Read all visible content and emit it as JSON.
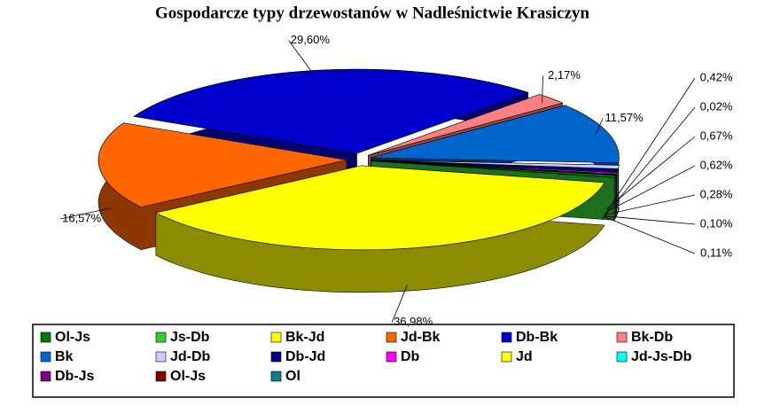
{
  "chart_data": {
    "type": "pie",
    "title": "Gospodarcze typy drzewostanów w Nadleśnictwie Krasiczyn",
    "categories": [
      "Ol-Js",
      "Js-Db",
      "Bk-Jd",
      "Jd-Bk",
      "Db-Bk",
      "Bk-Db",
      "Bk",
      "Jd-Db",
      "Db-Jd",
      "Db",
      "Jd",
      "Jd-Js-Db",
      "Db-Js",
      "Ol-Js",
      "Ol"
    ],
    "colors": [
      "#007a00",
      "#33cc33",
      "#ffff00",
      "#ff6600",
      "#0000cc",
      "#ff8080",
      "#0066cc",
      "#ccccff",
      "#000080",
      "#ff00ff",
      "#ffff00",
      "#00ffff",
      "#800080",
      "#800000",
      "#008080"
    ],
    "values": [
      0.42,
      0.02,
      36.98,
      16.57,
      29.6,
      2.17,
      11.57,
      0.67,
      0.62,
      0.28,
      0.1,
      0.11,
      null,
      null,
      null
    ],
    "value_labels": [
      "0,42%",
      "0,02%",
      "36,98%",
      "16,57%",
      "29,60%",
      "2,17%",
      "11,57%",
      "0,67%",
      "0,62%",
      "0,28%",
      "0,10%",
      "0,11%",
      null,
      null,
      null
    ]
  }
}
